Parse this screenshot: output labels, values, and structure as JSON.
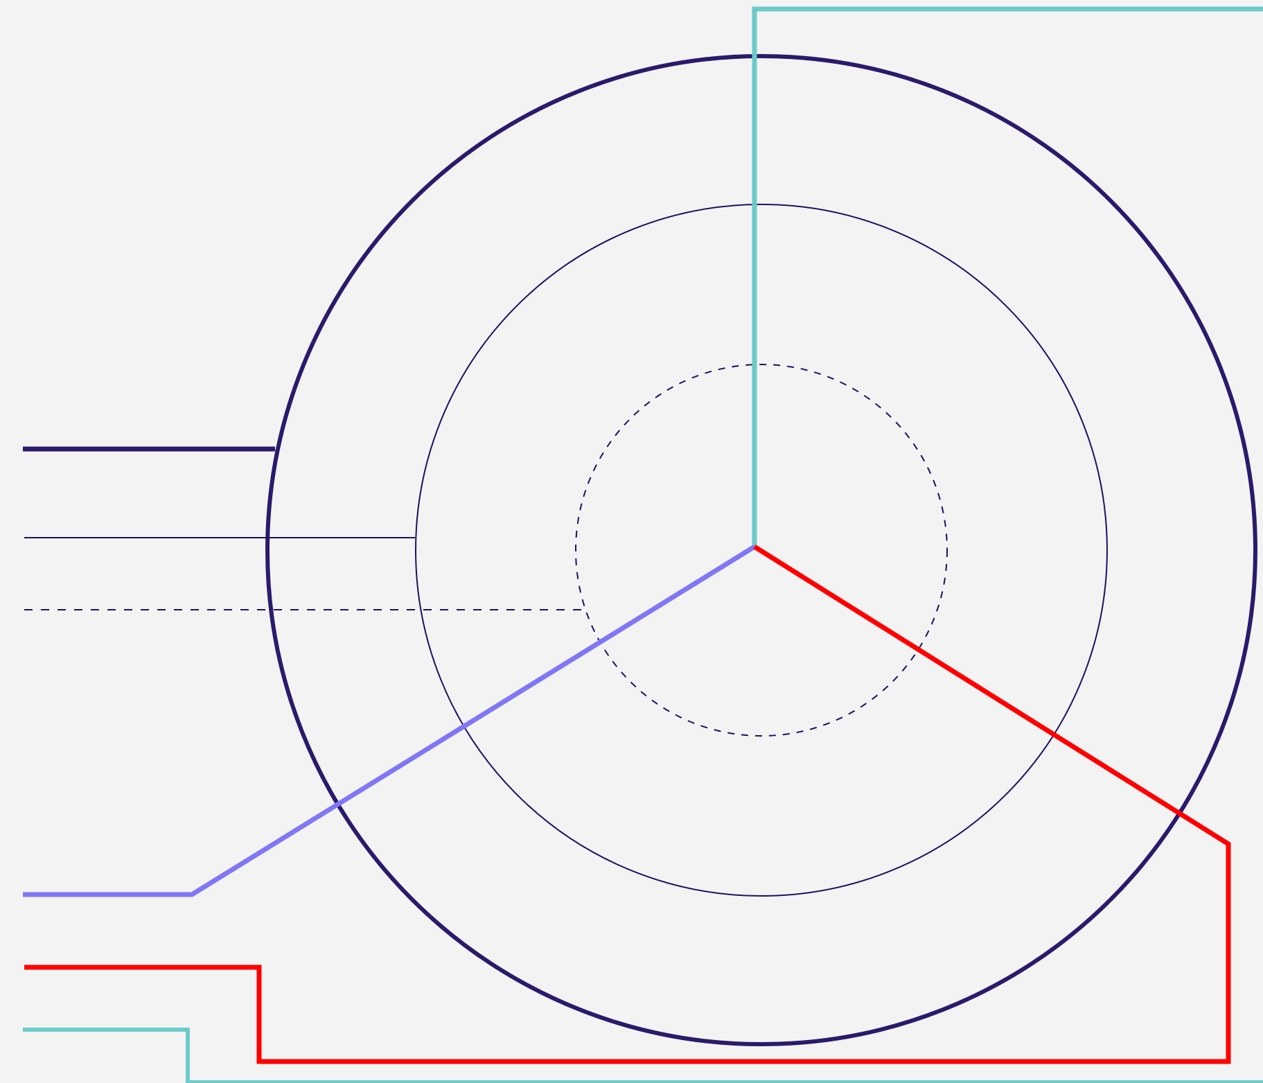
{
  "diagram": {
    "background": "#f3f3f3",
    "colors": {
      "ring_outer": "#2b1a6b",
      "ring_middle": "#1e1060",
      "ring_inner": "#1e1060",
      "leader_outer": "#2b1a6b",
      "leader_middle": "#1e1060",
      "leader_inner": "#1e1060",
      "spoke_teal": "#6ccbc8",
      "spoke_purple": "#8077f5",
      "spoke_red": "#ff0000"
    },
    "rings": [
      {
        "name": "outer-ring",
        "style": "solid-thick"
      },
      {
        "name": "middle-ring",
        "style": "solid-thin"
      },
      {
        "name": "inner-ring",
        "style": "dashed"
      }
    ],
    "spokes": [
      {
        "name": "teal-spoke",
        "color_key": "spoke_teal"
      },
      {
        "name": "purple-spoke",
        "color_key": "spoke_purple"
      },
      {
        "name": "red-spoke",
        "color_key": "spoke_red"
      }
    ]
  }
}
